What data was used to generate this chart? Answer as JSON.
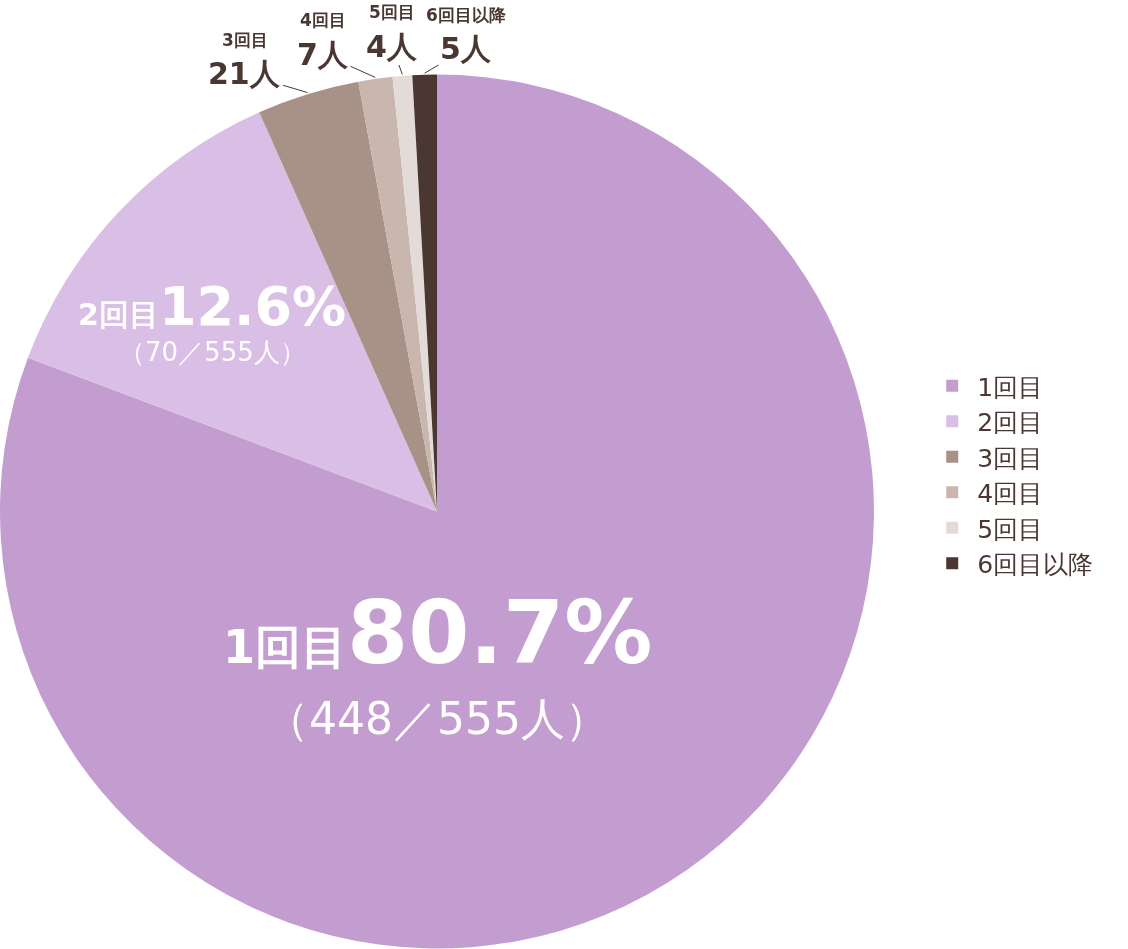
{
  "chart_data": {
    "type": "pie",
    "categories": [
      "1回目",
      "2回目",
      "3回目",
      "4回目",
      "5回目",
      "6回目以降"
    ],
    "values": [
      448,
      70,
      21,
      7,
      4,
      5
    ],
    "colors": [
      "#c39dd0",
      "#d9bee5",
      "#a89186",
      "#c9b6ae",
      "#e3dbd7",
      "#4b3731"
    ],
    "value_labels": [
      "80.7%（448／555人）",
      "12.6%（70／555人）",
      "21人",
      "7人",
      "4人",
      "5人"
    ],
    "legend": "right"
  }
}
